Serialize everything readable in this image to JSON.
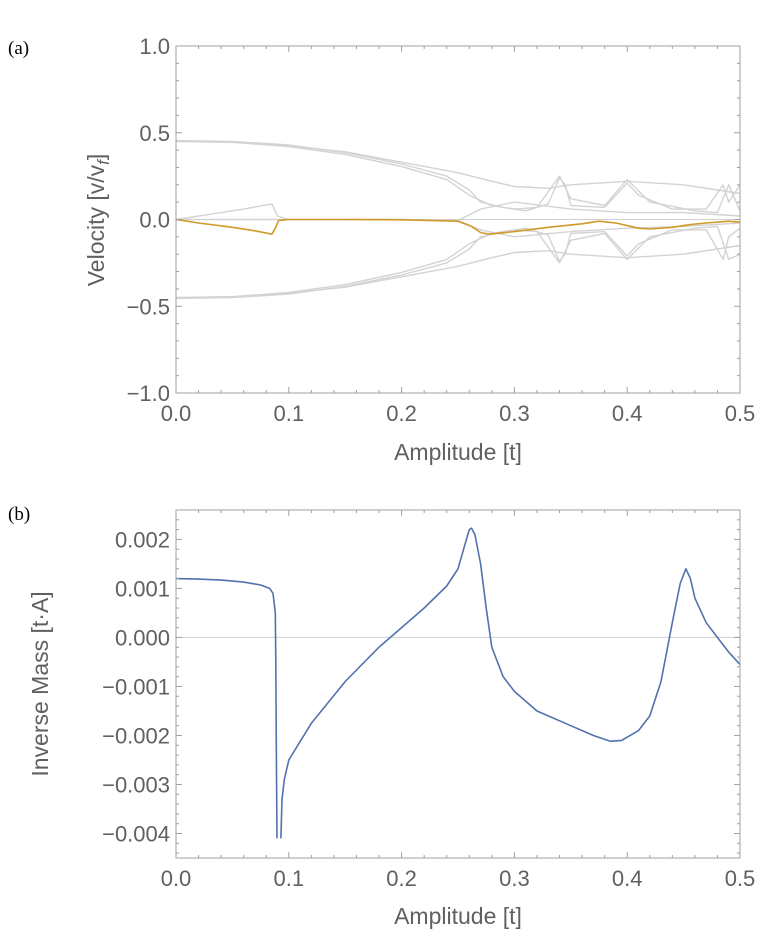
{
  "colors": {
    "axis": "#a0a0a0",
    "text": "#606060",
    "gray_band": "#d3d3d3",
    "highlight_band": "#cf9a2a",
    "inverse_mass": "#5272ad"
  },
  "chart_data": [
    {
      "panel_label": "(a)",
      "type": "line",
      "xlabel": "Amplitude [t]",
      "ylabel": "Velocity [v/v",
      "ylabel_sub": "f",
      "ylabel_close": "]",
      "xlim": [
        0,
        0.5
      ],
      "ylim": [
        -1.0,
        1.0
      ],
      "x_ticks": [
        0.0,
        0.1,
        0.2,
        0.3,
        0.4,
        0.5
      ],
      "x_tick_labels": [
        "0.0",
        "0.1",
        "0.2",
        "0.3",
        "0.4",
        "0.5"
      ],
      "y_ticks": [
        1.0,
        0.5,
        0.0,
        -0.5,
        -1.0
      ],
      "y_tick_labels": [
        "1.0",
        "0.5",
        "0.0",
        "−0.5",
        "−1.0"
      ],
      "series": [
        {
          "name": "band-upper-1",
          "color": "#d3d3d3",
          "points": [
            [
              0,
              0.45
            ],
            [
              0.05,
              0.445
            ],
            [
              0.1,
              0.425
            ],
            [
              0.15,
              0.39
            ],
            [
              0.2,
              0.33
            ],
            [
              0.25,
              0.27
            ],
            [
              0.28,
              0.22
            ],
            [
              0.3,
              0.19
            ],
            [
              0.33,
              0.18
            ],
            [
              0.35,
              0.2
            ],
            [
              0.4,
              0.22
            ],
            [
              0.45,
              0.2
            ],
            [
              0.48,
              0.17
            ],
            [
              0.5,
              0.15
            ]
          ]
        },
        {
          "name": "band-upper-2",
          "color": "#d3d3d3",
          "points": [
            [
              0,
              0.455
            ],
            [
              0.05,
              0.45
            ],
            [
              0.1,
              0.43
            ],
            [
              0.15,
              0.385
            ],
            [
              0.2,
              0.32
            ],
            [
              0.24,
              0.25
            ],
            [
              0.26,
              0.17
            ],
            [
              0.27,
              0.1
            ],
            [
              0.29,
              0.07
            ],
            [
              0.31,
              0.05
            ],
            [
              0.33,
              0.09
            ],
            [
              0.34,
              0.24
            ],
            [
              0.345,
              0.2
            ],
            [
              0.35,
              0.08
            ],
            [
              0.38,
              0.07
            ],
            [
              0.4,
              0.21
            ],
            [
              0.41,
              0.14
            ],
            [
              0.44,
              0.06
            ],
            [
              0.47,
              0.06
            ],
            [
              0.485,
              0.2
            ],
            [
              0.49,
              0.1
            ],
            [
              0.5,
              0.2
            ]
          ]
        },
        {
          "name": "band-upper-3",
          "color": "#d3d3d3",
          "points": [
            [
              0,
              0.45
            ],
            [
              0.05,
              0.445
            ],
            [
              0.1,
              0.42
            ],
            [
              0.15,
              0.375
            ],
            [
              0.2,
              0.305
            ],
            [
              0.24,
              0.23
            ],
            [
              0.26,
              0.14
            ],
            [
              0.28,
              0.08
            ],
            [
              0.3,
              0.06
            ],
            [
              0.32,
              0.07
            ],
            [
              0.34,
              0.25
            ],
            [
              0.35,
              0.12
            ],
            [
              0.38,
              0.08
            ],
            [
              0.4,
              0.23
            ],
            [
              0.42,
              0.1
            ],
            [
              0.46,
              0.05
            ],
            [
              0.48,
              0.04
            ],
            [
              0.49,
              0.2
            ],
            [
              0.5,
              0.05
            ]
          ]
        },
        {
          "name": "band-zero-up",
          "color": "#d3d3d3",
          "points": [
            [
              0,
              0
            ],
            [
              0.03,
              0.03
            ],
            [
              0.06,
              0.06
            ],
            [
              0.085,
              0.09
            ],
            [
              0.09,
              0.02
            ],
            [
              0.1,
              0
            ],
            [
              0.2,
              0
            ],
            [
              0.25,
              -0.005
            ],
            [
              0.27,
              0.06
            ],
            [
              0.3,
              0.1
            ],
            [
              0.35,
              0.06
            ],
            [
              0.4,
              0.04
            ],
            [
              0.45,
              0.04
            ],
            [
              0.5,
              0.02
            ]
          ]
        },
        {
          "name": "band-lower-1",
          "color": "#d3d3d3",
          "points": [
            [
              0,
              -0.45
            ],
            [
              0.05,
              -0.445
            ],
            [
              0.1,
              -0.425
            ],
            [
              0.15,
              -0.39
            ],
            [
              0.2,
              -0.33
            ],
            [
              0.25,
              -0.27
            ],
            [
              0.28,
              -0.22
            ],
            [
              0.3,
              -0.19
            ],
            [
              0.33,
              -0.18
            ],
            [
              0.35,
              -0.2
            ],
            [
              0.4,
              -0.22
            ],
            [
              0.45,
              -0.2
            ],
            [
              0.48,
              -0.17
            ],
            [
              0.5,
              -0.15
            ]
          ]
        },
        {
          "name": "band-lower-2",
          "color": "#d3d3d3",
          "points": [
            [
              0,
              -0.455
            ],
            [
              0.05,
              -0.45
            ],
            [
              0.1,
              -0.43
            ],
            [
              0.15,
              -0.385
            ],
            [
              0.2,
              -0.32
            ],
            [
              0.24,
              -0.25
            ],
            [
              0.26,
              -0.17
            ],
            [
              0.27,
              -0.1
            ],
            [
              0.29,
              -0.07
            ],
            [
              0.31,
              -0.05
            ],
            [
              0.33,
              -0.09
            ],
            [
              0.34,
              -0.24
            ],
            [
              0.345,
              -0.2
            ],
            [
              0.35,
              -0.08
            ],
            [
              0.38,
              -0.07
            ],
            [
              0.4,
              -0.21
            ],
            [
              0.41,
              -0.14
            ],
            [
              0.44,
              -0.06
            ],
            [
              0.47,
              -0.06
            ],
            [
              0.485,
              -0.23
            ],
            [
              0.49,
              -0.1
            ],
            [
              0.5,
              -0.05
            ]
          ]
        },
        {
          "name": "band-lower-3",
          "color": "#d3d3d3",
          "points": [
            [
              0,
              -0.45
            ],
            [
              0.05,
              -0.445
            ],
            [
              0.1,
              -0.42
            ],
            [
              0.15,
              -0.375
            ],
            [
              0.2,
              -0.305
            ],
            [
              0.24,
              -0.23
            ],
            [
              0.26,
              -0.14
            ],
            [
              0.28,
              -0.08
            ],
            [
              0.3,
              -0.06
            ],
            [
              0.32,
              -0.07
            ],
            [
              0.34,
              -0.25
            ],
            [
              0.35,
              -0.12
            ],
            [
              0.38,
              -0.08
            ],
            [
              0.4,
              -0.23
            ],
            [
              0.42,
              -0.1
            ],
            [
              0.46,
              -0.05
            ],
            [
              0.48,
              -0.04
            ],
            [
              0.49,
              -0.23
            ],
            [
              0.5,
              -0.2
            ]
          ]
        },
        {
          "name": "band-zero-down",
          "color": "#d3d3d3",
          "points": [
            [
              0,
              0
            ],
            [
              0.1,
              0
            ],
            [
              0.2,
              0
            ],
            [
              0.25,
              -0.005
            ],
            [
              0.27,
              -0.06
            ],
            [
              0.3,
              -0.1
            ],
            [
              0.35,
              -0.07
            ],
            [
              0.4,
              -0.05
            ],
            [
              0.45,
              -0.04
            ],
            [
              0.5,
              -0.02
            ]
          ]
        },
        {
          "name": "highlighted-band",
          "color": "#cf9a2a",
          "points": [
            [
              0,
              0
            ],
            [
              0.02,
              -0.02
            ],
            [
              0.05,
              -0.045
            ],
            [
              0.07,
              -0.065
            ],
            [
              0.085,
              -0.085
            ],
            [
              0.088,
              -0.05
            ],
            [
              0.091,
              -0.005
            ],
            [
              0.1,
              0
            ],
            [
              0.15,
              0
            ],
            [
              0.2,
              -0.002
            ],
            [
              0.25,
              -0.01
            ],
            [
              0.262,
              -0.04
            ],
            [
              0.27,
              -0.075
            ],
            [
              0.277,
              -0.085
            ],
            [
              0.3,
              -0.07
            ],
            [
              0.33,
              -0.045
            ],
            [
              0.36,
              -0.025
            ],
            [
              0.375,
              -0.01
            ],
            [
              0.39,
              -0.02
            ],
            [
              0.41,
              -0.05
            ],
            [
              0.42,
              -0.055
            ],
            [
              0.44,
              -0.045
            ],
            [
              0.455,
              -0.03
            ],
            [
              0.47,
              -0.02
            ],
            [
              0.49,
              -0.01
            ],
            [
              0.5,
              -0.015
            ]
          ]
        }
      ]
    },
    {
      "panel_label": "(b)",
      "type": "line",
      "xlabel": "Amplitude [t]",
      "ylabel": "Inverse Mass [t·A]",
      "xlim": [
        0,
        0.5
      ],
      "ylim": [
        -0.0045,
        0.0026
      ],
      "x_ticks": [
        0.0,
        0.1,
        0.2,
        0.3,
        0.4,
        0.5
      ],
      "x_tick_labels": [
        "0.0",
        "0.1",
        "0.2",
        "0.3",
        "0.4",
        "0.5"
      ],
      "y_ticks": [
        0.002,
        0.001,
        0.0,
        -0.001,
        -0.002,
        -0.003,
        -0.004
      ],
      "y_tick_labels": [
        "0.002",
        "0.001",
        "0.000",
        "−0.001",
        "−0.002",
        "−0.003",
        "−0.004"
      ],
      "series": [
        {
          "name": "inverse-mass",
          "color": "#5272ad",
          "points": [
            [
              0,
              0.0012
            ],
            [
              0.02,
              0.00119
            ],
            [
              0.04,
              0.00117
            ],
            [
              0.06,
              0.00113
            ],
            [
              0.075,
              0.00107
            ],
            [
              0.083,
              0.001
            ],
            [
              0.086,
              0.0009
            ],
            [
              0.088,
              0.0005
            ],
            [
              0.0885,
              -0.0005
            ],
            [
              0.089,
              -0.0025
            ],
            [
              0.0895,
              -0.0041
            ]
          ]
        },
        {
          "name": "inverse-mass-2",
          "color": "#5272ad",
          "points": [
            [
              0.093,
              -0.0041
            ],
            [
              0.094,
              -0.0033
            ],
            [
              0.096,
              -0.0029
            ],
            [
              0.1,
              -0.0025
            ],
            [
              0.12,
              -0.00175
            ],
            [
              0.15,
              -0.0009
            ],
            [
              0.18,
              -0.0002
            ],
            [
              0.2,
              0.0002
            ],
            [
              0.22,
              0.0006
            ],
            [
              0.24,
              0.00105
            ],
            [
              0.25,
              0.0014
            ],
            [
              0.255,
              0.0018
            ],
            [
              0.26,
              0.0022
            ],
            [
              0.262,
              0.00223
            ],
            [
              0.265,
              0.0021
            ],
            [
              0.27,
              0.0015
            ],
            [
              0.275,
              0.0006
            ],
            [
              0.28,
              -0.0002
            ],
            [
              0.29,
              -0.0008
            ],
            [
              0.3,
              -0.0011
            ],
            [
              0.32,
              -0.0015
            ],
            [
              0.35,
              -0.0018
            ],
            [
              0.37,
              -0.002
            ],
            [
              0.385,
              -0.00212
            ],
            [
              0.395,
              -0.0021
            ],
            [
              0.41,
              -0.0019
            ],
            [
              0.42,
              -0.0016
            ],
            [
              0.43,
              -0.0009
            ],
            [
              0.44,
              0.0003
            ],
            [
              0.447,
              0.0011
            ],
            [
              0.452,
              0.0014
            ],
            [
              0.456,
              0.0012
            ],
            [
              0.46,
              0.0008
            ],
            [
              0.47,
              0.0003
            ],
            [
              0.48,
              0.0
            ],
            [
              0.49,
              -0.0003
            ],
            [
              0.5,
              -0.00055
            ]
          ]
        }
      ]
    }
  ]
}
